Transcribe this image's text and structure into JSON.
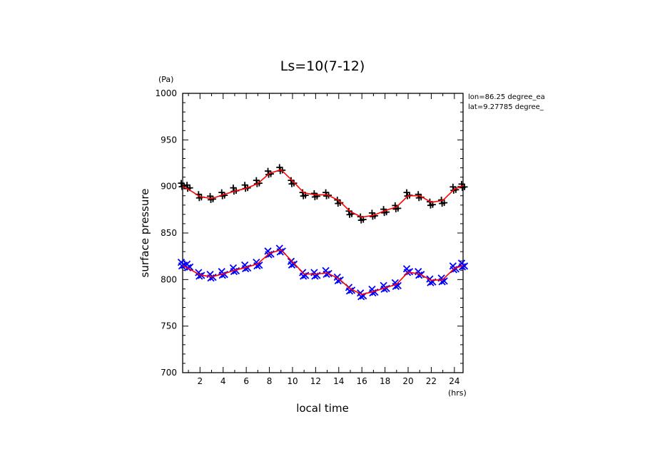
{
  "chart_data": {
    "type": "line",
    "title": "Ls=10(7-12)",
    "xlabel": "local time",
    "ylabel": "surface pressure",
    "x_unit": "(hrs)",
    "y_unit": "(Pa)",
    "xlim": [
      0.5,
      24.75
    ],
    "ylim": [
      700,
      1000
    ],
    "x_ticks": [
      2,
      4,
      6,
      8,
      10,
      12,
      14,
      16,
      18,
      20,
      22,
      24
    ],
    "y_ticks": [
      700,
      750,
      800,
      850,
      900,
      950,
      1000
    ],
    "annotations": [
      "lon=86.25 degree_ea",
      "lat=9.27785 degree_"
    ],
    "colors": {
      "fit": "#ff0000",
      "upper_markers": "#000000",
      "lower_markers": "#0000ff"
    },
    "grid": false,
    "series": [
      {
        "marker": "plus",
        "color": "#000000",
        "x": [
          0.5,
          1,
          2,
          3,
          4,
          5,
          6,
          7,
          8,
          9,
          10,
          11,
          12,
          13,
          14,
          15,
          16,
          17,
          18,
          19,
          20,
          21,
          22,
          23,
          24,
          24.75
        ],
        "values": [
          902,
          900,
          890,
          888,
          892,
          897,
          900,
          905,
          915,
          919,
          905,
          892,
          891,
          892,
          884,
          872,
          866,
          870,
          874,
          878,
          892,
          890,
          882,
          884,
          898,
          901
        ]
      },
      {
        "marker": "cross",
        "color": "#0000ff",
        "x": [
          0.5,
          1,
          2,
          3,
          4,
          5,
          6,
          7,
          8,
          9,
          10,
          11,
          12,
          13,
          14,
          15,
          16,
          17,
          18,
          19,
          20,
          21,
          22,
          23,
          24,
          24.75
        ],
        "values": [
          817,
          815,
          806,
          804,
          807,
          811,
          814,
          817,
          829,
          832,
          818,
          806,
          806,
          808,
          801,
          790,
          784,
          788,
          792,
          795,
          810,
          807,
          799,
          800,
          813,
          816
        ]
      },
      {
        "name": "",
        "type": "smooth-fit",
        "color": "#ff0000",
        "x": [
          0.5,
          1,
          2,
          3,
          4,
          5,
          6,
          7,
          8,
          9,
          10,
          11,
          12,
          13,
          14,
          15,
          16,
          17,
          18,
          19,
          20,
          21,
          22,
          23,
          24,
          24.75
        ],
        "values": [
          900,
          897,
          889,
          887,
          891,
          895,
          898,
          903,
          914,
          918,
          906,
          893,
          891,
          891,
          885,
          873,
          867,
          869,
          874,
          878,
          890,
          890,
          883,
          885,
          897,
          901
        ]
      },
      {
        "name": "",
        "type": "smooth-fit",
        "color": "#ff0000",
        "x": [
          0.5,
          1,
          2,
          3,
          4,
          5,
          6,
          7,
          8,
          9,
          10,
          11,
          12,
          13,
          14,
          15,
          16,
          17,
          18,
          19,
          20,
          21,
          22,
          23,
          24,
          24.75
        ],
        "values": [
          815,
          812,
          805,
          803,
          806,
          810,
          813,
          817,
          828,
          832,
          819,
          806,
          806,
          807,
          801,
          790,
          784,
          787,
          791,
          795,
          808,
          806,
          799,
          800,
          812,
          815
        ]
      }
    ]
  }
}
